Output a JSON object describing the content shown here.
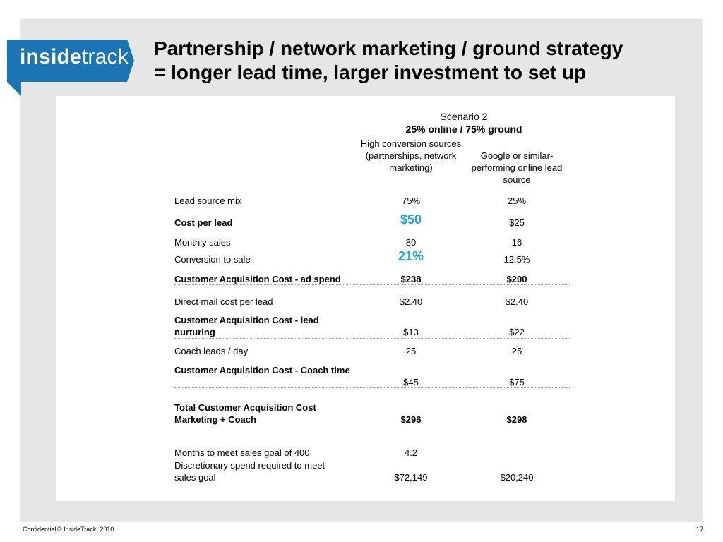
{
  "logo": {
    "bold": "inside",
    "light": "track",
    "brand_color": "#1b74b3"
  },
  "title_line1": "Partnership / network marketing / ground strategy",
  "title_line2": "= longer lead time, larger investment to set up",
  "scenario": {
    "title": "Scenario 2",
    "subtitle": "25% online / 75% ground"
  },
  "columns": [
    {
      "header": "High conversion sources (partnerships, network marketing)"
    },
    {
      "header": "Google or similar-performing online lead source"
    }
  ],
  "rows": [
    {
      "label": "Lead source mix",
      "v1": "75%",
      "v2": "25%"
    },
    {
      "label": "Cost per lead",
      "v1": "$50",
      "v2": "$25"
    },
    {
      "label": "Monthly sales",
      "v1": "80",
      "v2": "16"
    },
    {
      "label": "Conversion to sale",
      "v1": "21%",
      "v2": "12.5%"
    },
    {
      "label": "Customer Acquisition Cost - ad spend",
      "v1": "$238",
      "v2": "$200"
    },
    {
      "label": "Direct mail cost per lead",
      "v1": "$2.40",
      "v2": "$2.40"
    },
    {
      "label": "Customer Acquisition Cost - lead nurturing",
      "v1": "$13",
      "v2": "$22"
    },
    {
      "label": "Coach leads / day",
      "v1": "25",
      "v2": "25"
    },
    {
      "label": "Customer Acquisition Cost - Coach time",
      "v1": "$45",
      "v2": "$75"
    },
    {
      "label": "Total Customer Acquisition Cost Marketing + Coach",
      "v1": "$296",
      "v2": "$298"
    },
    {
      "label": "Months to meet sales goal of 400",
      "v1": "4.2",
      "v2": ""
    },
    {
      "label": "Discretionary spend required to meet sales goal",
      "v1": "$72,149",
      "v2": "$20,240"
    }
  ],
  "footer": {
    "confidential": "Confidential",
    "copyright": "© InsideTrack, 2010",
    "page": "17"
  }
}
